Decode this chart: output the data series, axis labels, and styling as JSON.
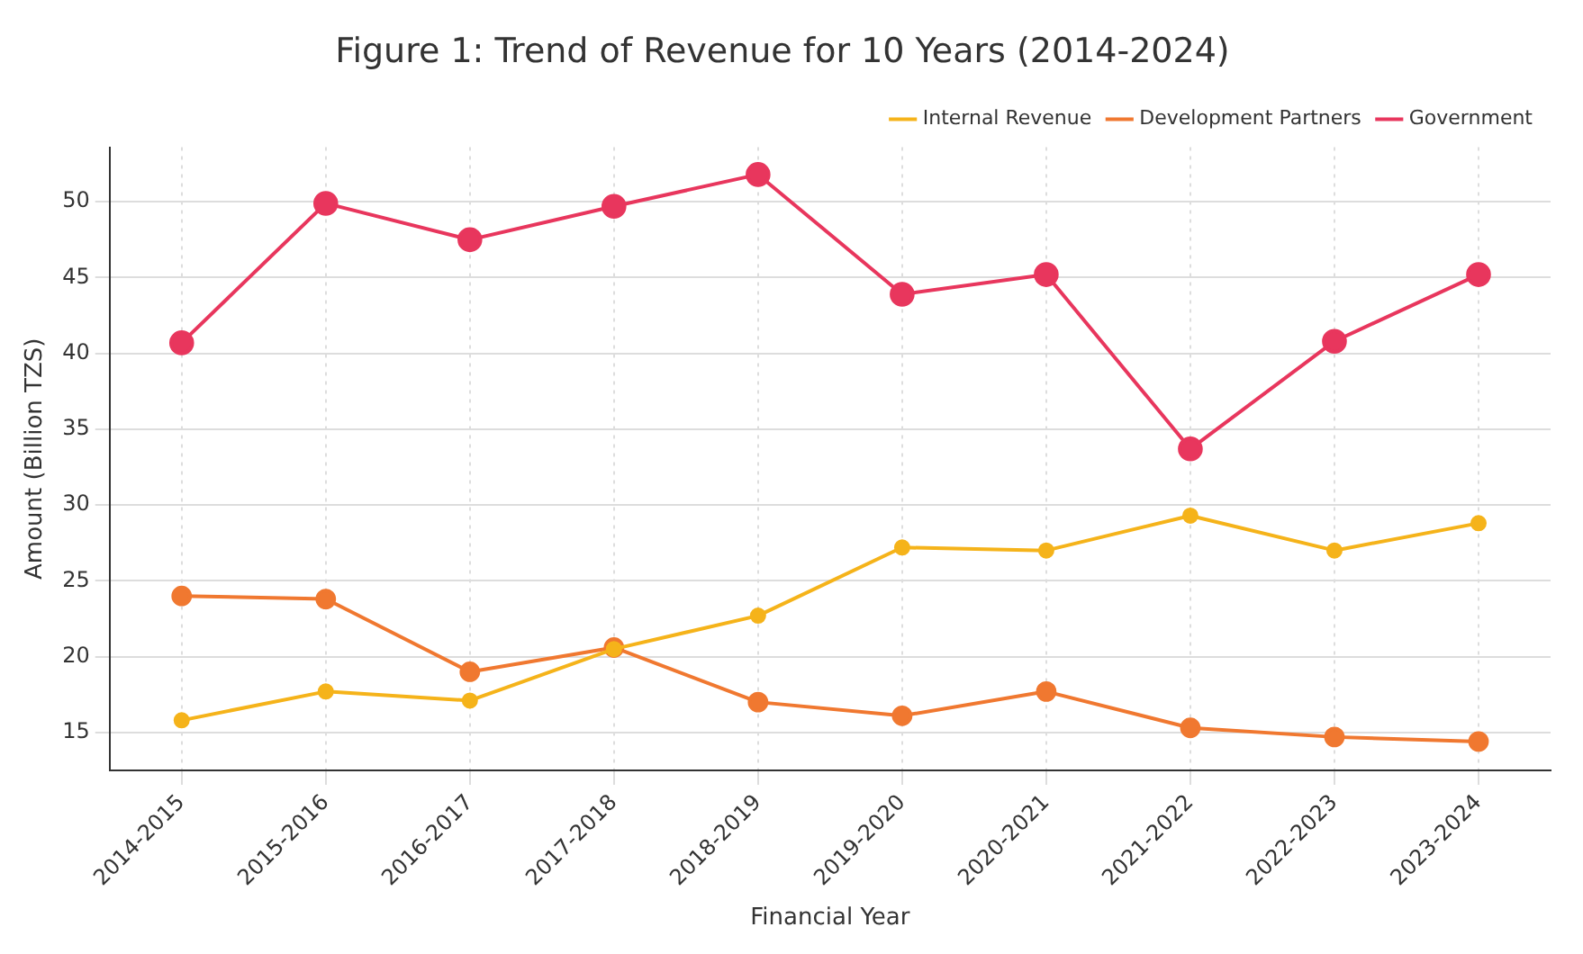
{
  "chart_data": {
    "type": "line",
    "title": "Figure 1: Trend of Revenue for 10 Years (2014-2024)",
    "xlabel": "Financial Year",
    "ylabel": "Amount (Billion TZS)",
    "categories": [
      "2014-2015",
      "2015-2016",
      "2016-2017",
      "2017-2018",
      "2018-2019",
      "2019-2020",
      "2020-2021",
      "2021-2022",
      "2022-2023",
      "2023-2024"
    ],
    "series": [
      {
        "name": "Internal Revenue",
        "color": "#f5b31a",
        "values": [
          15.8,
          17.7,
          17.1,
          20.5,
          22.7,
          27.2,
          27.0,
          29.3,
          27.0,
          28.8
        ]
      },
      {
        "name": "Development Partners",
        "color": "#f07830",
        "values": [
          24.0,
          23.8,
          19.0,
          20.6,
          17.0,
          16.1,
          17.7,
          15.3,
          14.7,
          14.4
        ]
      },
      {
        "name": "Government",
        "color": "#e8365d",
        "values": [
          40.7,
          49.9,
          47.5,
          49.7,
          51.8,
          43.9,
          45.2,
          33.7,
          40.8,
          45.2
        ]
      }
    ],
    "ylim": [
      12.5,
      53.6
    ],
    "yticks": [
      15,
      20,
      25,
      30,
      35,
      40,
      45,
      50
    ],
    "grid": true,
    "legend": "top right",
    "marker": "circle",
    "line_style": "solid"
  }
}
